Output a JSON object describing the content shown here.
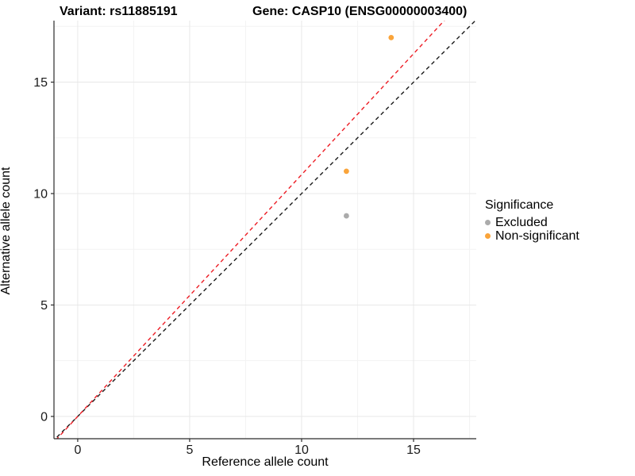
{
  "header": {
    "variant_title": "Variant: rs11885191",
    "gene_title": "Gene: CASP10 (ENSG00000003400)"
  },
  "chart_data": {
    "type": "scatter",
    "title": "Variant: rs11885191  Gene: CASP10 (ENSG00000003400)",
    "xlabel": "Reference allele count",
    "ylabel": "Alternative allele count",
    "xlim": [
      -1.06,
      17.8
    ],
    "ylim": [
      -1.0,
      17.76
    ],
    "x_ticks": [
      0,
      5,
      10,
      15
    ],
    "y_ticks": [
      0,
      5,
      10,
      15
    ],
    "x_minor_ticks": [
      2.5,
      7.5,
      12.5,
      17.5
    ],
    "y_minor_ticks": [
      2.5,
      7.5,
      12.5,
      17.5
    ],
    "grid": true,
    "series": [
      {
        "name": "Excluded",
        "color": "#ABABAB",
        "points": [
          {
            "x": 12,
            "y": 9
          }
        ]
      },
      {
        "name": "Non-significant",
        "color": "#FAA43A",
        "points": [
          {
            "x": 12,
            "y": 11
          },
          {
            "x": 14,
            "y": 17
          }
        ]
      }
    ],
    "lines": [
      {
        "name": "identity-line",
        "color": "#1A1A1A",
        "dashed": true,
        "slope": 1.0,
        "intercept": 0
      },
      {
        "name": "expected-ratio-line",
        "color": "#ED1C24",
        "dashed": true,
        "slope": 1.085,
        "intercept": 0
      }
    ],
    "legend": {
      "title": "Significance",
      "position": "right",
      "items": [
        {
          "label": "Excluded",
          "color": "#ABABAB"
        },
        {
          "label": "Non-significant",
          "color": "#FAA43A"
        }
      ]
    },
    "colors": {
      "major_grid": "#E8E8E8",
      "minor_grid": "#F3F3F3",
      "axis_line": "#2B2B2B",
      "tick_label": "#1A1A1A"
    }
  }
}
